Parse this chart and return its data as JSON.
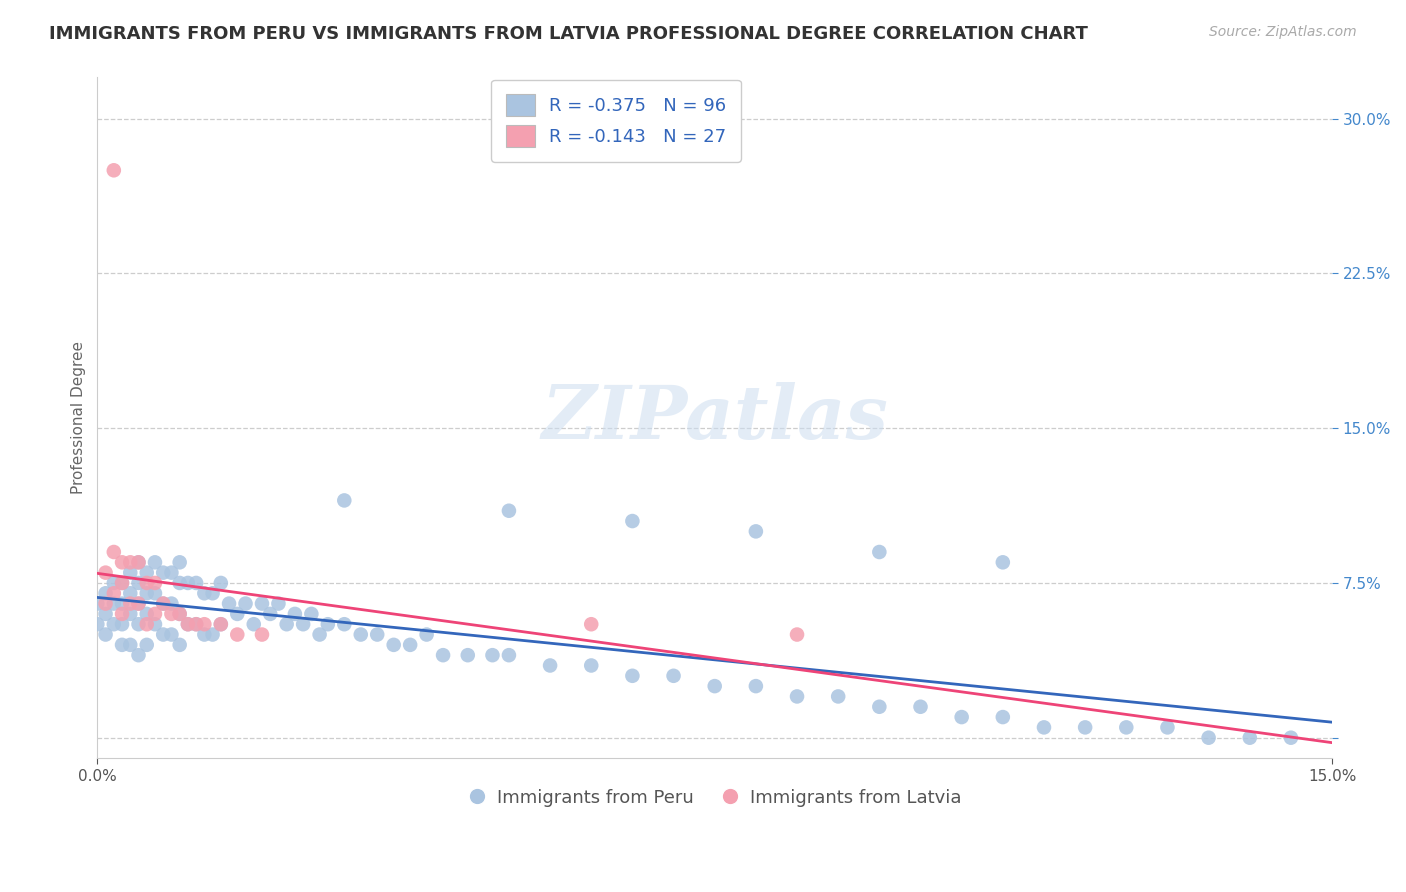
{
  "title": "IMMIGRANTS FROM PERU VS IMMIGRANTS FROM LATVIA PROFESSIONAL DEGREE CORRELATION CHART",
  "source": "Source: ZipAtlas.com",
  "ylabel": "Professional Degree",
  "xmin": 0.0,
  "xmax": 0.15,
  "ymin": -0.01,
  "ymax": 0.32,
  "ytick_vals": [
    0.0,
    0.075,
    0.15,
    0.225,
    0.3
  ],
  "ytick_labels": [
    "",
    "7.5%",
    "15.0%",
    "22.5%",
    "30.0%"
  ],
  "background_color": "#ffffff",
  "grid_color": "#c8c8c8",
  "color_peru": "#aac4e0",
  "color_latvia": "#f4a0b0",
  "line_color_peru": "#3366bb",
  "line_color_latvia": "#ee4477",
  "title_fontsize": 13,
  "source_fontsize": 10,
  "axis_label_fontsize": 11,
  "tick_fontsize": 11,
  "legend_fontsize": 13,
  "peru_x": [
    0.0,
    0.0,
    0.001,
    0.001,
    0.001,
    0.002,
    0.002,
    0.002,
    0.003,
    0.003,
    0.003,
    0.003,
    0.004,
    0.004,
    0.004,
    0.004,
    0.005,
    0.005,
    0.005,
    0.005,
    0.005,
    0.006,
    0.006,
    0.006,
    0.006,
    0.007,
    0.007,
    0.007,
    0.008,
    0.008,
    0.008,
    0.009,
    0.009,
    0.009,
    0.01,
    0.01,
    0.01,
    0.01,
    0.011,
    0.011,
    0.012,
    0.012,
    0.013,
    0.013,
    0.014,
    0.014,
    0.015,
    0.015,
    0.016,
    0.017,
    0.018,
    0.019,
    0.02,
    0.021,
    0.022,
    0.023,
    0.024,
    0.025,
    0.026,
    0.027,
    0.028,
    0.03,
    0.032,
    0.034,
    0.036,
    0.038,
    0.04,
    0.042,
    0.045,
    0.048,
    0.05,
    0.055,
    0.06,
    0.065,
    0.07,
    0.075,
    0.08,
    0.085,
    0.09,
    0.095,
    0.1,
    0.105,
    0.11,
    0.115,
    0.12,
    0.125,
    0.13,
    0.135,
    0.14,
    0.145,
    0.03,
    0.05,
    0.065,
    0.08,
    0.095,
    0.11
  ],
  "peru_y": [
    0.065,
    0.055,
    0.07,
    0.06,
    0.05,
    0.075,
    0.065,
    0.055,
    0.075,
    0.065,
    0.055,
    0.045,
    0.08,
    0.07,
    0.06,
    0.045,
    0.085,
    0.075,
    0.065,
    0.055,
    0.04,
    0.08,
    0.07,
    0.06,
    0.045,
    0.085,
    0.07,
    0.055,
    0.08,
    0.065,
    0.05,
    0.08,
    0.065,
    0.05,
    0.085,
    0.075,
    0.06,
    0.045,
    0.075,
    0.055,
    0.075,
    0.055,
    0.07,
    0.05,
    0.07,
    0.05,
    0.075,
    0.055,
    0.065,
    0.06,
    0.065,
    0.055,
    0.065,
    0.06,
    0.065,
    0.055,
    0.06,
    0.055,
    0.06,
    0.05,
    0.055,
    0.055,
    0.05,
    0.05,
    0.045,
    0.045,
    0.05,
    0.04,
    0.04,
    0.04,
    0.04,
    0.035,
    0.035,
    0.03,
    0.03,
    0.025,
    0.025,
    0.02,
    0.02,
    0.015,
    0.015,
    0.01,
    0.01,
    0.005,
    0.005,
    0.005,
    0.005,
    0.0,
    0.0,
    0.0,
    0.115,
    0.11,
    0.105,
    0.1,
    0.09,
    0.085
  ],
  "latvia_x": [
    0.001,
    0.001,
    0.002,
    0.002,
    0.003,
    0.003,
    0.003,
    0.004,
    0.004,
    0.005,
    0.005,
    0.006,
    0.006,
    0.007,
    0.007,
    0.008,
    0.009,
    0.01,
    0.011,
    0.012,
    0.013,
    0.015,
    0.017,
    0.02,
    0.06,
    0.085,
    0.002
  ],
  "latvia_y": [
    0.08,
    0.065,
    0.09,
    0.07,
    0.085,
    0.075,
    0.06,
    0.085,
    0.065,
    0.085,
    0.065,
    0.075,
    0.055,
    0.075,
    0.06,
    0.065,
    0.06,
    0.06,
    0.055,
    0.055,
    0.055,
    0.055,
    0.05,
    0.05,
    0.055,
    0.05,
    0.275
  ]
}
